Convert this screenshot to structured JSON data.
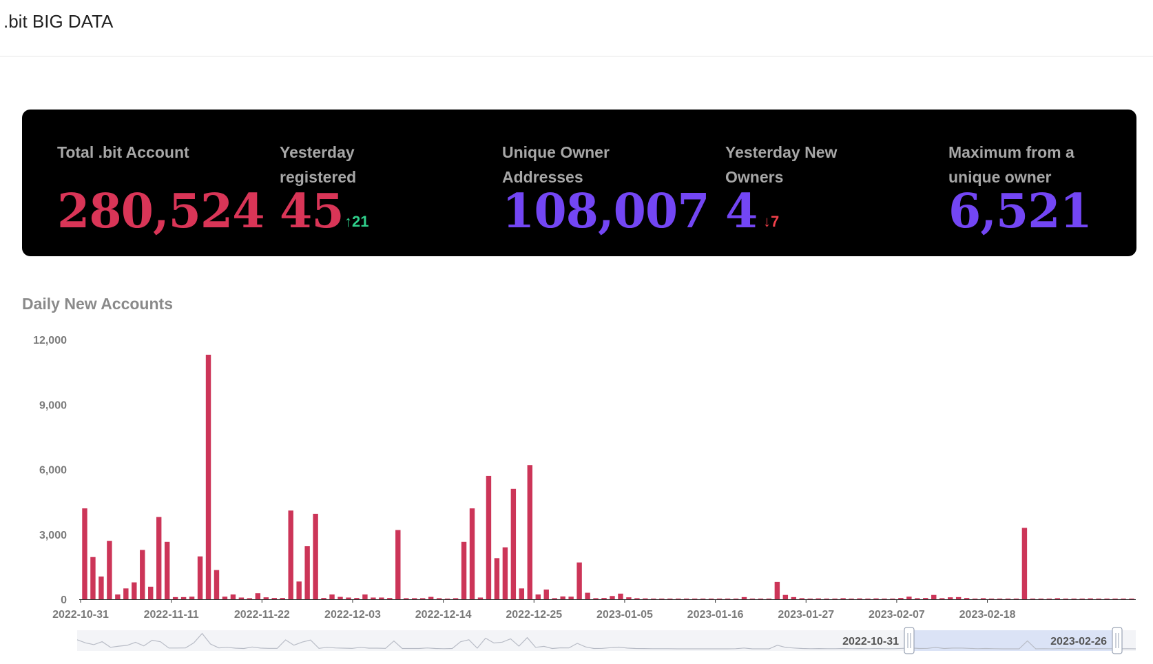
{
  "header": {
    "brand": ".bit BIG DATA"
  },
  "stats": [
    {
      "label": "Total .bit Account",
      "value": "280,524",
      "color": "#d93557"
    },
    {
      "label": "Yesterday registered",
      "value": "45",
      "color": "#d93557",
      "delta": {
        "direction": "up",
        "value": "21",
        "color": "#2fcf8b"
      }
    },
    {
      "label": "Unique Owner Addresses",
      "value": "108,007",
      "color": "#7346f4"
    },
    {
      "label": "Yesterday New Owners",
      "value": "4",
      "color": "#7346f4",
      "delta": {
        "direction": "down",
        "value": "7",
        "color": "#f0404a"
      }
    },
    {
      "label": "Maximum from a unique owner",
      "value": "6,521",
      "color": "#7346f4"
    }
  ],
  "chart": {
    "title": "Daily New Accounts",
    "slider": {
      "start_label": "2022-10-31",
      "end_label": "2023-02-26"
    }
  },
  "chart_data": {
    "type": "bar",
    "title": "Daily New Accounts",
    "xlabel": "",
    "ylabel": "",
    "ylim": [
      0,
      12000
    ],
    "yticks": [
      "0",
      "3,000",
      "6,000",
      "9,000",
      "12,000"
    ],
    "xticks": [
      "2022-10-31",
      "2022-11-11",
      "2022-11-22",
      "2022-12-03",
      "2022-12-14",
      "2022-12-25",
      "2023-01-05",
      "2023-01-16",
      "2023-01-27",
      "2023-02-07",
      "2023-02-18"
    ],
    "start_date": "2022-10-31",
    "bar_color": "#cc3558",
    "grid": false,
    "values": [
      4200,
      1950,
      1050,
      2700,
      220,
      500,
      780,
      2280,
      580,
      3800,
      2650,
      100,
      100,
      120,
      1980,
      11300,
      1350,
      120,
      220,
      80,
      50,
      280,
      90,
      60,
      60,
      4100,
      820,
      2450,
      3950,
      60,
      220,
      110,
      80,
      60,
      220,
      80,
      80,
      60,
      3200,
      50,
      50,
      50,
      110,
      50,
      30,
      50,
      2650,
      4200,
      80,
      5700,
      1900,
      2400,
      5100,
      500,
      6200,
      220,
      450,
      50,
      130,
      120,
      1700,
      300,
      50,
      60,
      150,
      260,
      90,
      50,
      40,
      30,
      30,
      30,
      20,
      20,
      20,
      20,
      20,
      20,
      20,
      30,
      100,
      20,
      20,
      20,
      800,
      200,
      100,
      50,
      30,
      40,
      30,
      30,
      50,
      30,
      40,
      30,
      40,
      30,
      30,
      60,
      120,
      50,
      60,
      200,
      50,
      90,
      100,
      60,
      30,
      50,
      30,
      20,
      20,
      20,
      3300,
      20,
      30,
      20,
      50,
      20,
      20,
      30,
      40,
      30,
      30,
      20,
      30,
      20
    ]
  }
}
